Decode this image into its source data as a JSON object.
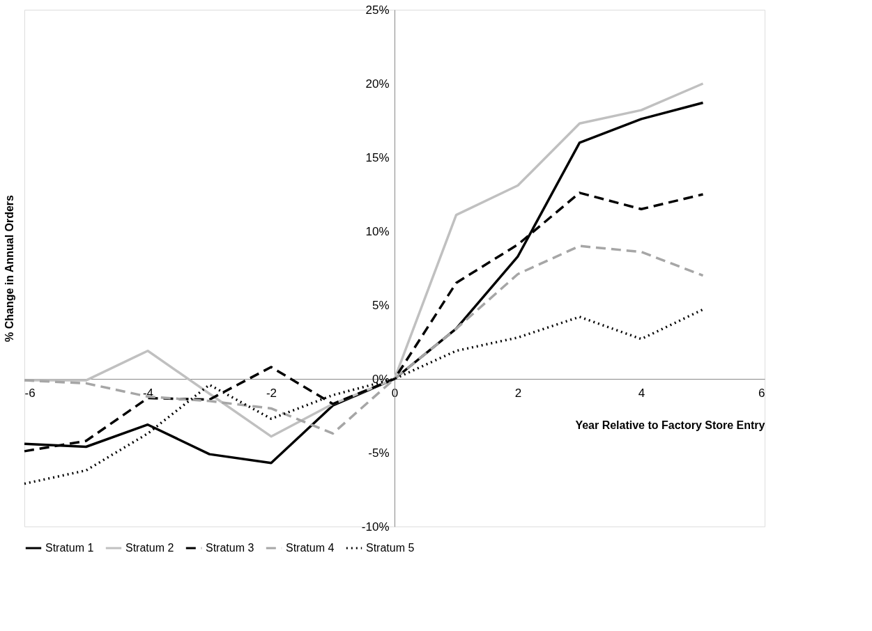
{
  "chart_data": {
    "type": "line",
    "xlabel": "Year Relative to Factory Store Entry",
    "ylabel": "% Change in Annual Orders",
    "x": [
      -6,
      -5,
      -4,
      -3,
      -2,
      -1,
      0,
      1,
      2,
      3,
      4,
      5
    ],
    "series": [
      {
        "name": "Stratum 1",
        "color": "#000000",
        "line_style": "solid",
        "values": [
          -4.4,
          -4.6,
          -3.1,
          -5.1,
          -5.7,
          -1.8,
          0,
          3.4,
          8.3,
          16.0,
          17.6,
          18.7
        ]
      },
      {
        "name": "Stratum 2",
        "color": "#c0c0c0",
        "line_style": "solid",
        "values": [
          -0.1,
          -0.1,
          1.9,
          -1.0,
          -3.9,
          -1.7,
          0,
          11.1,
          13.1,
          17.3,
          18.2,
          20.0
        ]
      },
      {
        "name": "Stratum 3",
        "color": "#000000",
        "line_style": "dashed",
        "values": [
          -4.9,
          -4.2,
          -1.3,
          -1.4,
          0.8,
          -1.7,
          0,
          6.5,
          9.1,
          12.6,
          11.5,
          12.5
        ]
      },
      {
        "name": "Stratum 4",
        "color": "#a6a6a6",
        "line_style": "dashed",
        "values": [
          -0.1,
          -0.3,
          -1.2,
          -1.5,
          -2.0,
          -3.7,
          0,
          3.4,
          7.1,
          9.0,
          8.6,
          7.0
        ]
      },
      {
        "name": "Stratum 5",
        "color": "#000000",
        "line_style": "dotted",
        "values": [
          -7.1,
          -6.2,
          -3.7,
          -0.4,
          -2.7,
          -1.1,
          0,
          1.9,
          2.8,
          4.2,
          2.7,
          4.7
        ]
      }
    ],
    "xlim": [
      -6,
      6
    ],
    "xticks": [
      -6,
      -4,
      -2,
      0,
      2,
      4,
      6
    ],
    "ylim": [
      -10,
      25
    ],
    "yticks": [
      {
        "value": -10,
        "label": "-10%"
      },
      {
        "value": -5,
        "label": "-5%"
      },
      {
        "value": 0,
        "label": "0%"
      },
      {
        "value": 5,
        "label": "5%"
      },
      {
        "value": 10,
        "label": "10%"
      },
      {
        "value": 15,
        "label": "15%"
      },
      {
        "value": 20,
        "label": "20%"
      },
      {
        "value": 25,
        "label": "25%"
      }
    ],
    "grid": false,
    "legend": "bottom",
    "marker": "none"
  }
}
